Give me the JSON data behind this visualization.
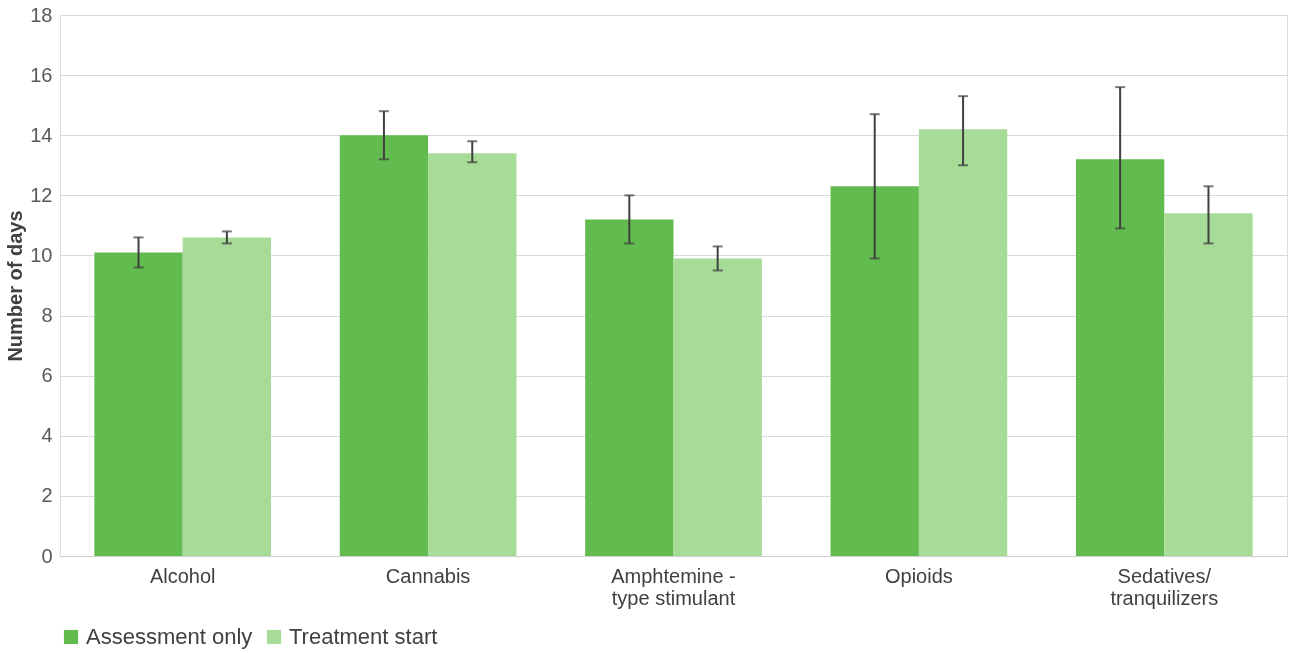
{
  "chart_data": {
    "type": "bar",
    "ylabel": "Number of days",
    "categories": [
      "Alcohol",
      "Cannabis",
      "Amphtemine -\ntype stimulant",
      "Opioids",
      "Sedatives/\ntranquilizers"
    ],
    "series": [
      {
        "name": "Assessment only",
        "color": "#62bb4e",
        "values": [
          10.1,
          14.0,
          11.2,
          12.3,
          13.2
        ],
        "errors": [
          [
            9.6,
            10.6
          ],
          [
            13.2,
            14.8
          ],
          [
            10.4,
            12.0
          ],
          [
            9.9,
            14.7
          ],
          [
            10.9,
            15.6
          ]
        ]
      },
      {
        "name": "Treatment start",
        "color": "#a7db98",
        "values": [
          10.6,
          13.4,
          9.9,
          14.2,
          11.4
        ],
        "errors": [
          [
            10.4,
            10.8
          ],
          [
            13.1,
            13.8
          ],
          [
            9.5,
            10.3
          ],
          [
            13.0,
            15.3
          ],
          [
            10.4,
            12.3
          ]
        ]
      }
    ],
    "ylim": [
      0,
      18
    ],
    "yticks": [
      0,
      2,
      4,
      6,
      8,
      10,
      12,
      14,
      16,
      18
    ],
    "grid": "y",
    "legend": "bottom"
  }
}
